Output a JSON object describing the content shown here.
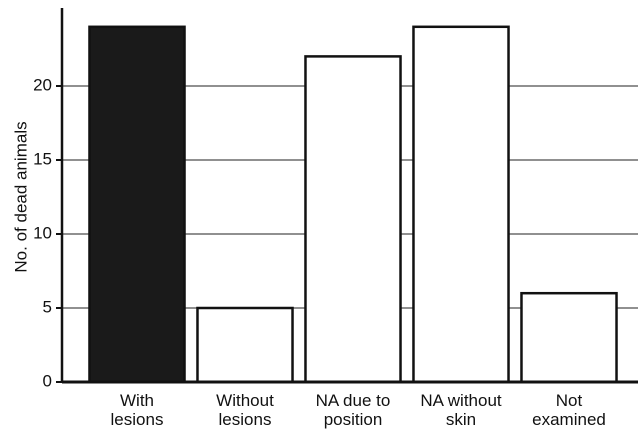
{
  "chart_data": {
    "type": "bar",
    "y_label": "No. of dead animals",
    "categories": [
      "With\nlesions",
      "Without\nlesions",
      "NA due to\nposition",
      "NA without\nskin",
      "Not\nexamined"
    ],
    "values": [
      24,
      5,
      22,
      24,
      6
    ],
    "colors": [
      "#1a1a1a",
      "#ffffff",
      "#ffffff",
      "#ffffff",
      "#ffffff"
    ],
    "ylim": [
      0,
      25
    ],
    "yticks": [
      0,
      5,
      10,
      15,
      20
    ],
    "grid": true
  }
}
